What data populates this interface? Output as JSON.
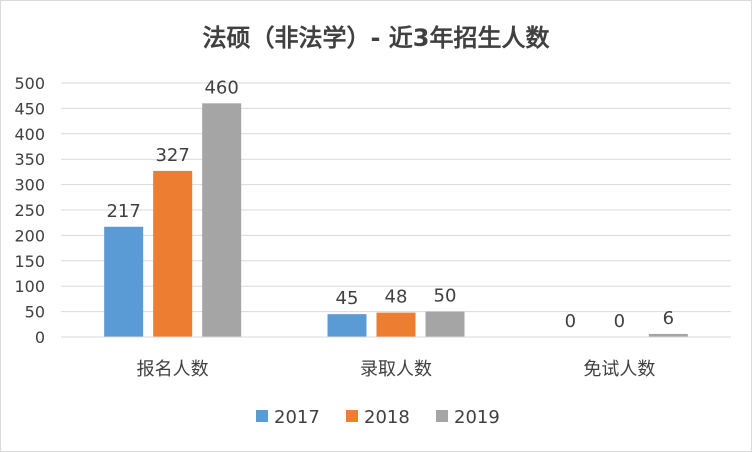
{
  "chart_data": {
    "type": "bar",
    "title": "法硕（非法学）- 近3年招生人数",
    "categories": [
      "报名人数",
      "录取人数",
      "免试人数"
    ],
    "series": [
      {
        "name": "2017",
        "values": [
          217,
          45,
          0
        ],
        "color": "#5B9BD5"
      },
      {
        "name": "2018",
        "values": [
          327,
          48,
          0
        ],
        "color": "#ED7D31"
      },
      {
        "name": "2019",
        "values": [
          460,
          50,
          6
        ],
        "color": "#A5A5A5"
      }
    ],
    "ylim": [
      0,
      500
    ],
    "yticks": [
      "0",
      "50",
      "100",
      "150",
      "200",
      "250",
      "300",
      "350",
      "400",
      "450",
      "500"
    ],
    "grid": true,
    "legend": "bottom",
    "data_labels": true
  }
}
